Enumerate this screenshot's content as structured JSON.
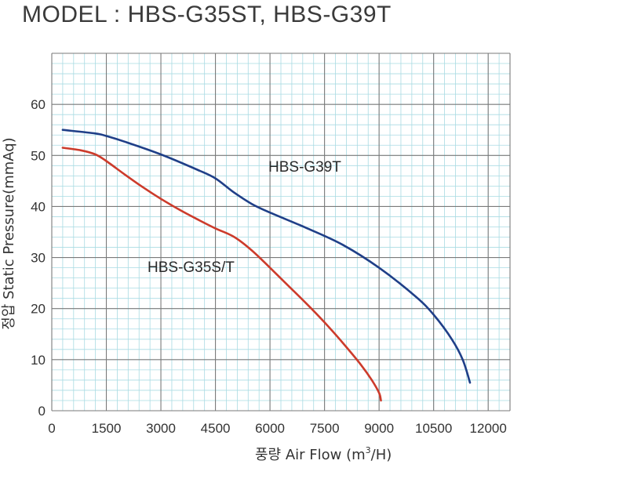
{
  "title": "MODEL : HBS-G35ST, HBS-G39T",
  "chart_data": {
    "type": "line",
    "title": "MODEL : HBS-G35ST, HBS-G39T",
    "xlabel_prefix": "풍량 Air Flow (m",
    "xlabel_sup": "3",
    "xlabel_suffix": "/H)",
    "ylabel": "정압 Static Pressure(mmAq)",
    "xlim": [
      0,
      12600
    ],
    "ylim": [
      0,
      70
    ],
    "x_ticks": [
      0,
      1500,
      3000,
      4500,
      6000,
      7500,
      9000,
      10500,
      12000
    ],
    "x_tick_labels": [
      "0",
      "1500",
      "3000",
      "4500",
      "6000",
      "7500",
      "9000",
      "10500",
      "12000"
    ],
    "y_ticks": [
      0,
      10,
      20,
      30,
      40,
      50,
      60
    ],
    "y_tick_labels": [
      "0",
      "10",
      "20",
      "30",
      "40",
      "50",
      "60"
    ],
    "grid": true,
    "grid_colors": {
      "major": "#7a7a7a",
      "minor": "#a9dbe3"
    },
    "series": [
      {
        "name": "HBS-G39T",
        "color": "#1f3f88",
        "x": [
          300,
          1200,
          1500,
          2000,
          3000,
          4000,
          4500,
          5000,
          5500,
          6000,
          7000,
          8000,
          9000,
          10000,
          10500,
          11000,
          11300,
          11500
        ],
        "y": [
          55,
          54.3,
          53.8,
          52.7,
          50.2,
          47.2,
          45.5,
          42.8,
          40.5,
          38.8,
          35.8,
          32.5,
          28,
          22.4,
          18.8,
          14,
          10,
          5.5
        ]
      },
      {
        "name": "HBS-G35S/T",
        "color": "#cc3b2b",
        "x": [
          300,
          800,
          1200,
          1500,
          2000,
          2500,
          3000,
          3500,
          4000,
          4500,
          5000,
          5500,
          6000,
          6500,
          7000,
          7500,
          8000,
          8500,
          8800,
          9000,
          9050
        ],
        "y": [
          51.5,
          51,
          50.2,
          48.9,
          46.3,
          43.8,
          41.5,
          39.4,
          37.5,
          35.7,
          34.1,
          31.4,
          28,
          24.5,
          21,
          17.3,
          13.3,
          9,
          6,
          3.5,
          2
        ]
      }
    ]
  }
}
